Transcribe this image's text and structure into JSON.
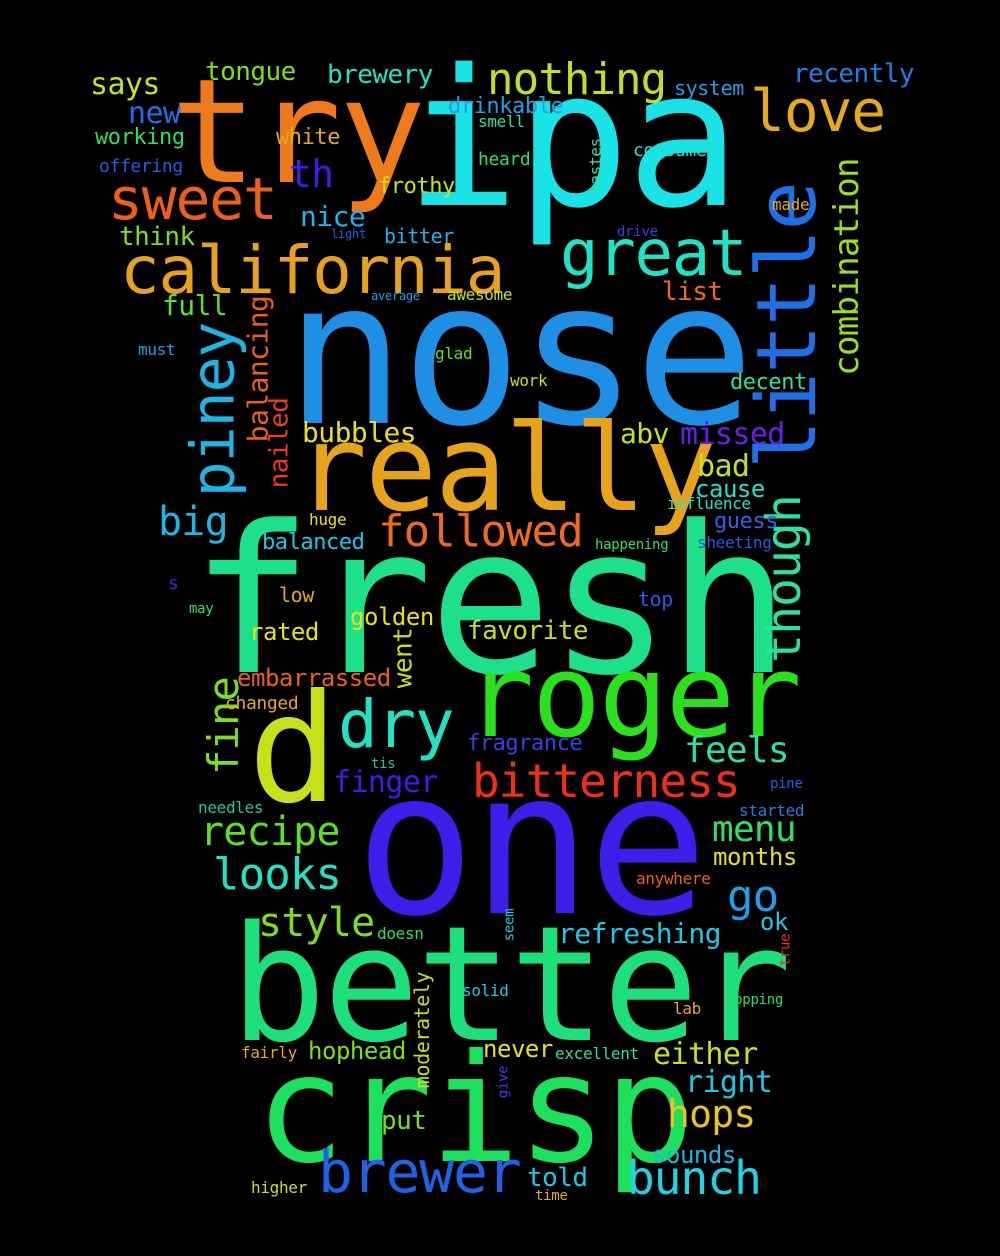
{
  "words": [
    {
      "text": "fresh",
      "color": "#1de08a"
    },
    {
      "text": "nose",
      "color": "#1f8fe6"
    },
    {
      "text": "ipa",
      "color": "#19e3e6"
    },
    {
      "text": "one",
      "color": "#3a1fe8"
    },
    {
      "text": "better",
      "color": "#1de07a"
    },
    {
      "text": "try",
      "color": "#ef7a1c"
    },
    {
      "text": "crisp",
      "color": "#1de05c"
    },
    {
      "text": "really",
      "color": "#e8a31c"
    },
    {
      "text": "roger",
      "color": "#2be01c"
    },
    {
      "text": "d",
      "color": "#c8e01c"
    },
    {
      "text": "little",
      "color": "#1f6fe6"
    },
    {
      "text": "california",
      "color": "#e8a11c"
    },
    {
      "text": "great",
      "color": "#20e3c6"
    },
    {
      "text": "nothing",
      "color": "#c0e01c"
    },
    {
      "text": "love",
      "color": "#e8a81c"
    },
    {
      "text": "sweet",
      "color": "#ef5f1c"
    },
    {
      "text": "dry",
      "color": "#20e3c6"
    },
    {
      "text": "piney",
      "color": "#1fb3e6"
    },
    {
      "text": "brewer",
      "color": "#1f62e6"
    },
    {
      "text": "bitterness",
      "color": "#ef2f1c"
    },
    {
      "text": "though",
      "color": "#2be0a0"
    },
    {
      "text": "followed",
      "color": "#ef6a1c"
    },
    {
      "text": "bunch",
      "color": "#20d4e6"
    },
    {
      "text": "combination",
      "color": "#98e01c"
    },
    {
      "text": "looks",
      "color": "#20e3c6"
    },
    {
      "text": "recipe",
      "color": "#5ee01c"
    },
    {
      "text": "hops",
      "color": "#e8c41c"
    },
    {
      "text": "style",
      "color": "#7ae01c"
    },
    {
      "text": "menu",
      "color": "#30e05c"
    },
    {
      "text": "go",
      "color": "#1f9fe6"
    },
    {
      "text": "fine",
      "color": "#7ae01c"
    },
    {
      "text": "big",
      "color": "#1fb3e6"
    },
    {
      "text": "feels",
      "color": "#2be0a0"
    },
    {
      "text": "th",
      "color": "#3a1fe8"
    },
    {
      "text": "balancing",
      "color": "#ef5f1c"
    },
    {
      "text": "nailed",
      "color": "#ef3a1c"
    },
    {
      "text": "refreshing",
      "color": "#1fc6e6"
    },
    {
      "text": "either",
      "color": "#c8e01c"
    },
    {
      "text": "right",
      "color": "#1fc6e6"
    },
    {
      "text": "finger",
      "color": "#3a1fe8"
    },
    {
      "text": "missed",
      "color": "#6a1fe8"
    },
    {
      "text": "bubbles",
      "color": "#e8e01c"
    },
    {
      "text": "brewery",
      "color": "#20e3c6"
    },
    {
      "text": "abv",
      "color": "#c8e01c"
    },
    {
      "text": "nice",
      "color": "#1fb3e6"
    },
    {
      "text": "says",
      "color": "#c8e01c"
    },
    {
      "text": "bad",
      "color": "#c8e01c"
    },
    {
      "text": "new",
      "color": "#1f6fe6"
    },
    {
      "text": "recently",
      "color": "#1f7fe6"
    },
    {
      "text": "tongue",
      "color": "#7ae01c"
    },
    {
      "text": "months",
      "color": "#e8e01c"
    },
    {
      "text": "list",
      "color": "#ef6a1c"
    },
    {
      "text": "full",
      "color": "#5ee01c"
    },
    {
      "text": "think",
      "color": "#7ae01c"
    },
    {
      "text": "favorite",
      "color": "#c8e01c"
    },
    {
      "text": "went",
      "color": "#c8e01c"
    },
    {
      "text": "embarrassed",
      "color": "#ef5f1c"
    },
    {
      "text": "golden",
      "color": "#e8e01c"
    },
    {
      "text": "told",
      "color": "#1fc6e6"
    },
    {
      "text": "put",
      "color": "#7ae01c"
    },
    {
      "text": "cause",
      "color": "#20e3c6"
    },
    {
      "text": "decent",
      "color": "#2be0a0"
    },
    {
      "text": "rated",
      "color": "#e8e01c"
    },
    {
      "text": "ok",
      "color": "#1fc6e6"
    },
    {
      "text": "fragrance",
      "color": "#3a3fe8"
    },
    {
      "text": "balanced",
      "color": "#1fc6e6"
    },
    {
      "text": "guess",
      "color": "#3a5fe8"
    },
    {
      "text": "frothy",
      "color": "#c8e01c"
    },
    {
      "text": "hophead",
      "color": "#7ae01c"
    },
    {
      "text": "never",
      "color": "#e8e01c"
    },
    {
      "text": "drinkable",
      "color": "#1f9fe6"
    },
    {
      "text": "sounds",
      "color": "#1fb3e6"
    },
    {
      "text": "working",
      "color": "#2be05c"
    },
    {
      "text": "white",
      "color": "#e8a81c"
    },
    {
      "text": "moderately",
      "color": "#c8e01c"
    },
    {
      "text": "system",
      "color": "#1f9fe6"
    },
    {
      "text": "bitter",
      "color": "#1fb3e6"
    },
    {
      "text": "low",
      "color": "#e8a81c"
    },
    {
      "text": "top",
      "color": "#1f5fe6"
    },
    {
      "text": "offering",
      "color": "#1f5fe6"
    },
    {
      "text": "consumed",
      "color": "#20e3c6"
    },
    {
      "text": "heard",
      "color": "#2be05c"
    },
    {
      "text": "awesome",
      "color": "#c8e01c"
    },
    {
      "text": "influence",
      "color": "#20e3c6"
    },
    {
      "text": "changed",
      "color": "#e8a81c"
    },
    {
      "text": "excellent",
      "color": "#2be0a0"
    },
    {
      "text": "huge",
      "color": "#e8e01c"
    },
    {
      "text": "sheeting",
      "color": "#1f5fe6"
    },
    {
      "text": "tastes",
      "color": "#2be0a0"
    },
    {
      "text": "smell",
      "color": "#2be0a0"
    },
    {
      "text": "anywhere",
      "color": "#ef5f1c"
    },
    {
      "text": "needles",
      "color": "#1fc6a0"
    },
    {
      "text": "fairly",
      "color": "#e8a81c"
    },
    {
      "text": "must",
      "color": "#1f9fe6"
    },
    {
      "text": "glad",
      "color": "#5ee01c"
    },
    {
      "text": "work",
      "color": "#c8e01c"
    },
    {
      "text": "made",
      "color": "#e8a81c"
    },
    {
      "text": "drive",
      "color": "#3a3fe8"
    },
    {
      "text": "started",
      "color": "#1f7fe6"
    },
    {
      "text": "doesn",
      "color": "#2be05c"
    },
    {
      "text": "seem",
      "color": "#1fc6e6"
    },
    {
      "text": "solid",
      "color": "#1fc6e6"
    },
    {
      "text": "lab",
      "color": "#e8a81c"
    },
    {
      "text": "hopping",
      "color": "#2be05c"
    },
    {
      "text": "tis",
      "color": "#1fc6a0"
    },
    {
      "text": "pine",
      "color": "#1f5fe6"
    },
    {
      "text": "average",
      "color": "#1f9fe6"
    },
    {
      "text": "light",
      "color": "#1f5fe6"
    },
    {
      "text": "happening",
      "color": "#2be05c"
    },
    {
      "text": "may",
      "color": "#2be05c"
    },
    {
      "text": "s",
      "color": "#3a1fe8"
    },
    {
      "text": "true",
      "color": "#ef2f1c"
    },
    {
      "text": "give",
      "color": "#3a3fe8"
    },
    {
      "text": "higher",
      "color": "#c8e01c"
    },
    {
      "text": "time",
      "color": "#e8a81c"
    }
  ]
}
